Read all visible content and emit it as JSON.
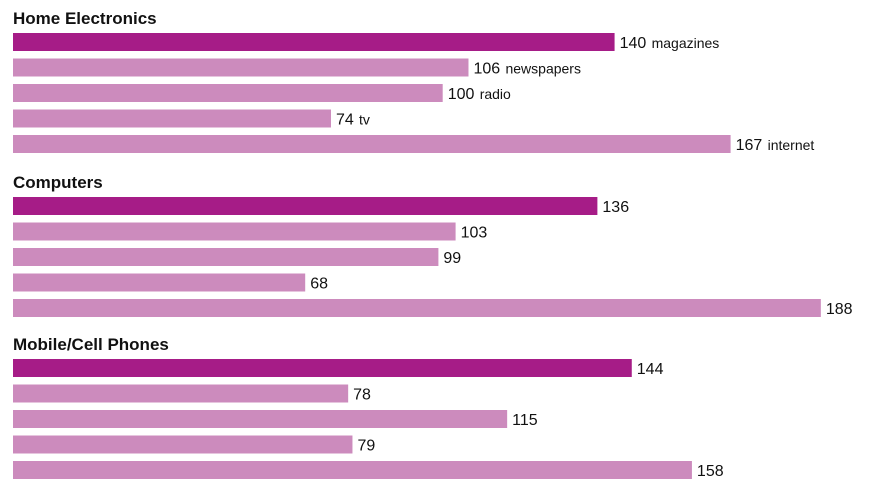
{
  "chart_data": {
    "type": "bar",
    "orientation": "horizontal",
    "title": "",
    "xlabel": "",
    "ylabel": "",
    "xlim": [
      0,
      190
    ],
    "grid": false,
    "legend": "none",
    "categories": [
      "magazines",
      "newspapers",
      "radio",
      "tv",
      "internet"
    ],
    "category_labels_shown_in": "Home Electronics",
    "groups": [
      {
        "name": "Home Electronics",
        "values": [
          140,
          106,
          100,
          74,
          167
        ]
      },
      {
        "name": "Computers",
        "values": [
          136,
          103,
          99,
          68,
          188
        ]
      },
      {
        "name": "Mobile/Cell Phones",
        "values": [
          144,
          78,
          115,
          79,
          158
        ]
      }
    ],
    "colors": {
      "highlight": "#a61c87",
      "bar": "#cc8bbd"
    }
  }
}
